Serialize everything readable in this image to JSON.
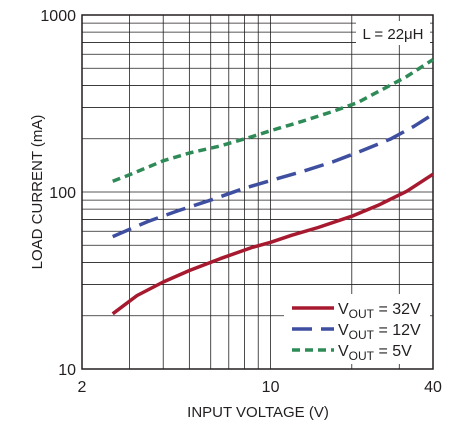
{
  "chart_data": {
    "type": "line",
    "title": "",
    "xlabel": "INPUT VOLTAGE (V)",
    "ylabel": "LOAD CURRENT (mA)",
    "xscale": "log",
    "yscale": "log",
    "xlim": [
      2,
      40
    ],
    "ylim": [
      10,
      1000
    ],
    "grid": true,
    "legend_position": "bottom-right",
    "annotation": "L = 22μH",
    "xticks": [
      {
        "value": 2,
        "label": "2"
      },
      {
        "value": 10,
        "label": "10"
      },
      {
        "value": 40,
        "label": "40"
      }
    ],
    "yticks": [
      {
        "value": 10,
        "label": "10"
      },
      {
        "value": 100,
        "label": "100"
      },
      {
        "value": 1000,
        "label": "1000"
      }
    ],
    "series": [
      {
        "name": "32V",
        "color": "#a6192e",
        "dash": "solid",
        "points": [
          [
            2.6,
            20.5
          ],
          [
            3.2,
            26
          ],
          [
            4.0,
            31
          ],
          [
            5.0,
            36
          ],
          [
            6.5,
            42
          ],
          [
            8.5,
            48.5
          ],
          [
            10.0,
            52
          ],
          [
            12.0,
            57
          ],
          [
            15.0,
            63
          ],
          [
            20.0,
            73
          ],
          [
            25.0,
            84
          ],
          [
            32.0,
            101
          ],
          [
            40.0,
            126
          ]
        ]
      },
      {
        "name": "12V",
        "color": "#3f4fa0",
        "dash": "long-dash",
        "points": [
          [
            2.6,
            56
          ],
          [
            3.5,
            68
          ],
          [
            4.5,
            78
          ],
          [
            6.0,
            90
          ],
          [
            8.0,
            105
          ],
          [
            10.0,
            116
          ],
          [
            13.0,
            130
          ],
          [
            17.0,
            148
          ],
          [
            22.0,
            172
          ],
          [
            28.0,
            200
          ],
          [
            34.0,
            235
          ],
          [
            40.0,
            275
          ]
        ]
      },
      {
        "name": "5V",
        "color": "#2e8b57",
        "dash": "short-dash",
        "points": [
          [
            2.6,
            115
          ],
          [
            3.0,
            125
          ],
          [
            4.0,
            150
          ],
          [
            5.0,
            166
          ],
          [
            6.5,
            182
          ],
          [
            8.5,
            205
          ],
          [
            10.0,
            222
          ],
          [
            13.0,
            250
          ],
          [
            17.0,
            285
          ],
          [
            21.0,
            320
          ],
          [
            26.0,
            380
          ],
          [
            32.0,
            450
          ],
          [
            40.0,
            560
          ]
        ]
      }
    ]
  },
  "legend": [
    {
      "prefix": "V",
      "sub": "OUT",
      "suffix": " = 32V"
    },
    {
      "prefix": "V",
      "sub": "OUT",
      "suffix": " = 12V"
    },
    {
      "prefix": "V",
      "sub": "OUT",
      "suffix": " = 5V"
    }
  ]
}
